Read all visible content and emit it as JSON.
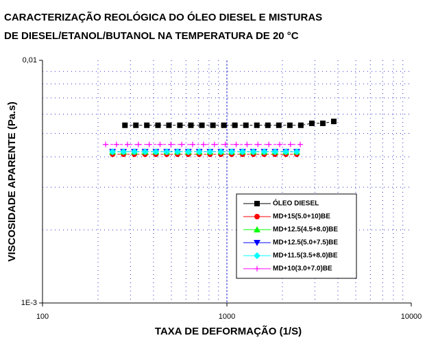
{
  "chart_data": {
    "type": "line",
    "title": [
      "CARACTERIZAÇÃO REOLÓGICA DO ÓLEO DIESEL E MISTURAS",
      "DE DIESEL/ETANOL/BUTANOL NA TEMPERATURA DE 20 °C"
    ],
    "x_label": "TAXA DE DEFORMAÇÃO (1/S)",
    "y_label": "VISCOSIDADE APARENTE (Pa.s)",
    "xscale": "log",
    "yscale": "log",
    "grid": true,
    "xlim": [
      100,
      10000
    ],
    "xticks": [
      100,
      1000,
      10000
    ],
    "ylim": [
      0.001,
      0.01
    ],
    "yticks": [
      {
        "value": 0.001,
        "label": "1E-3"
      },
      {
        "value": 0.01,
        "label": "0,01"
      }
    ],
    "series": [
      {
        "name": "ÓLEO DIESEL",
        "color": "#000000",
        "marker": "square",
        "x": [
          280,
          321,
          368,
          423,
          485,
          556,
          638,
          732,
          840,
          963,
          1105,
          1268,
          1454,
          1668,
          1914,
          2195,
          2518,
          2889,
          3314,
          3800
        ],
        "values": [
          0.0054,
          0.0054,
          0.0054,
          0.0054,
          0.0054,
          0.0054,
          0.0054,
          0.0054,
          0.0054,
          0.0054,
          0.0054,
          0.0054,
          0.0054,
          0.0054,
          0.0054,
          0.0054,
          0.0054,
          0.0055,
          0.0055,
          0.0056
        ]
      },
      {
        "name": "MD+15(5.0+10)BE",
        "color": "#ff0000",
        "marker": "circle",
        "x": [
          240,
          275,
          315,
          360,
          412,
          472,
          540,
          618,
          708,
          810,
          928,
          1062,
          1216,
          1392,
          1594,
          1825,
          2090,
          2393
        ],
        "values": [
          0.0041,
          0.0041,
          0.0041,
          0.0041,
          0.0041,
          0.0041,
          0.0041,
          0.0041,
          0.0041,
          0.0041,
          0.0041,
          0.0041,
          0.0041,
          0.0041,
          0.0041,
          0.0041,
          0.0041,
          0.0041
        ]
      },
      {
        "name": "MD+12.5(4.5+8.0)BE",
        "color": "#00ff00",
        "marker": "triangle-up",
        "x": [
          240,
          275,
          315,
          360,
          412,
          472,
          540,
          618,
          708,
          810,
          928,
          1062,
          1216,
          1392,
          1594,
          1825,
          2090,
          2393
        ],
        "values": [
          0.0042,
          0.0042,
          0.0042,
          0.0042,
          0.0042,
          0.0042,
          0.0042,
          0.0042,
          0.0042,
          0.0042,
          0.0042,
          0.0042,
          0.0042,
          0.0042,
          0.0042,
          0.0042,
          0.0042,
          0.0042
        ]
      },
      {
        "name": "MD+12.5(5.0+7.5)BE",
        "color": "#0000ff",
        "marker": "triangle-down",
        "x": [
          240,
          275,
          315,
          360,
          412,
          472,
          540,
          618,
          708,
          810,
          928,
          1062,
          1216,
          1392,
          1594,
          1825,
          2090,
          2393
        ],
        "values": [
          0.0042,
          0.0042,
          0.0042,
          0.0042,
          0.0042,
          0.0042,
          0.0042,
          0.0042,
          0.0042,
          0.0042,
          0.0042,
          0.0042,
          0.0042,
          0.0042,
          0.0042,
          0.0042,
          0.0042,
          0.0042
        ]
      },
      {
        "name": "MD+11.5(3.5+8.0)BE",
        "color": "#00ffff",
        "marker": "diamond",
        "x": [
          240,
          275,
          315,
          360,
          412,
          472,
          540,
          618,
          708,
          810,
          928,
          1062,
          1216,
          1392,
          1594,
          1825,
          2090,
          2393
        ],
        "values": [
          0.0042,
          0.0042,
          0.0042,
          0.0042,
          0.0042,
          0.0042,
          0.0042,
          0.0042,
          0.0042,
          0.0042,
          0.0042,
          0.0042,
          0.0042,
          0.0042,
          0.0042,
          0.0042,
          0.0042,
          0.0042
        ]
      },
      {
        "name": "MD+10(3.0+7.0)BE",
        "color": "#ff00ff",
        "marker": "plus",
        "x": [
          220,
          252,
          289,
          331,
          379,
          434,
          497,
          569,
          652,
          747,
          856,
          980,
          1123,
          1286,
          1473,
          1688,
          1933,
          2214,
          2500
        ],
        "values": [
          0.0045,
          0.0045,
          0.0045,
          0.0045,
          0.0045,
          0.0045,
          0.0045,
          0.0045,
          0.0045,
          0.0045,
          0.0045,
          0.0045,
          0.0045,
          0.0045,
          0.0045,
          0.0045,
          0.0045,
          0.0045,
          0.0045
        ]
      }
    ]
  }
}
